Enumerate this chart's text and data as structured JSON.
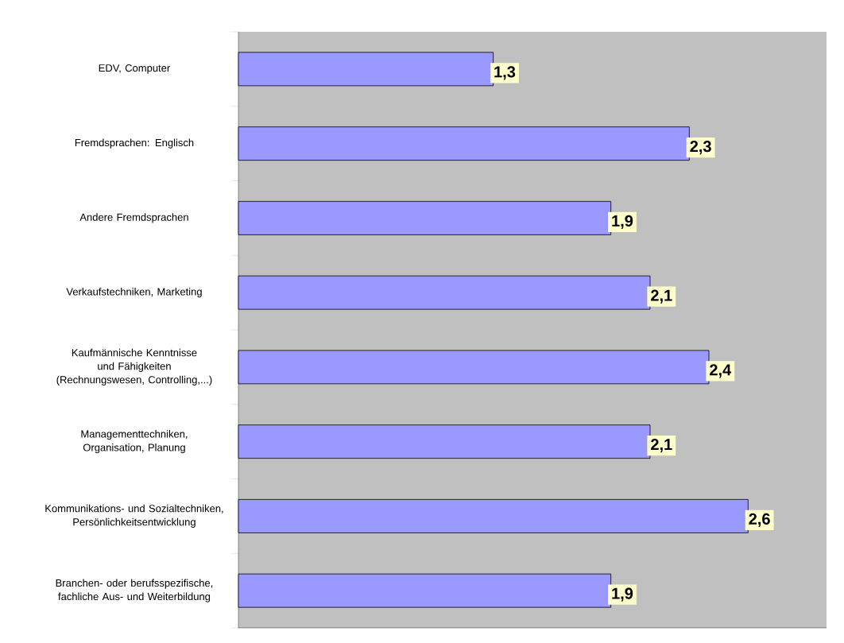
{
  "chart_data": {
    "type": "bar",
    "orientation": "horizontal",
    "categories": [
      "EDV, Computer",
      "Fremdsprachen: Englisch",
      "Andere Fremdsprachen",
      "Verkaufstechniken, Marketing",
      "Kaufmännische Kenntnisse und Fähigkeiten (Rechnungswesen, Controlling,...)",
      "Managementtechniken, Organisation, Planung",
      "Kommunikations- und Sozialtechniken, Persönlichkeitsentwicklung",
      "Branchen- oder berufsspezifische, fachliche Aus- und Weiterbildung"
    ],
    "values": [
      1.3,
      2.3,
      1.9,
      2.1,
      2.4,
      2.1,
      2.6,
      1.9
    ],
    "value_labels": [
      "1,3",
      "2,3",
      "1,9",
      "2,1",
      "2,4",
      "2,1",
      "2,6",
      "1,9"
    ],
    "color": "#9999ff",
    "xlim": [
      0,
      3
    ]
  }
}
